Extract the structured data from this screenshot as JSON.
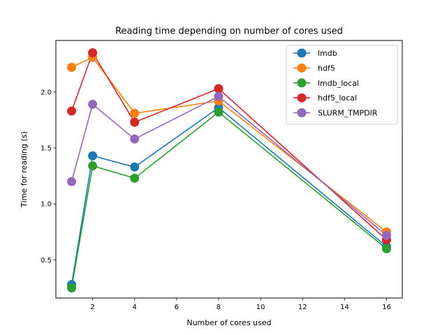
{
  "chart_data": {
    "type": "line",
    "title": "Reading time depending on number of cores used",
    "xlabel": "Number of cores used",
    "ylabel": "Time for reading (s)",
    "xlim": [
      0.25,
      16.75
    ],
    "ylim": [
      0.16,
      2.46
    ],
    "xticks": [
      2,
      4,
      6,
      8,
      10,
      12,
      14,
      16
    ],
    "yticks": [
      0.5,
      1.0,
      1.5,
      2.0
    ],
    "ytick_labels": [
      "0.5",
      "1.0",
      "1.5",
      "2.0"
    ],
    "grid": false,
    "legend_position": "top-right",
    "x": [
      1,
      2,
      4,
      8,
      16
    ],
    "series": [
      {
        "name": "lmdb",
        "color": "#1f77b4",
        "values": [
          0.28,
          1.43,
          1.33,
          1.86,
          0.62
        ]
      },
      {
        "name": "hdf5",
        "color": "#ff7f0e",
        "values": [
          2.22,
          2.31,
          1.81,
          1.92,
          0.75
        ]
      },
      {
        "name": "lmdb_local",
        "color": "#2ca02c",
        "values": [
          0.25,
          1.34,
          1.23,
          1.82,
          0.6
        ]
      },
      {
        "name": "hdf5_local",
        "color": "#d62728",
        "values": [
          1.83,
          2.35,
          1.73,
          2.03,
          0.68
        ]
      },
      {
        "name": "SLURM_TMPDIR",
        "color": "#9467bd",
        "values": [
          1.2,
          1.89,
          1.58,
          1.96,
          0.72
        ]
      }
    ]
  }
}
